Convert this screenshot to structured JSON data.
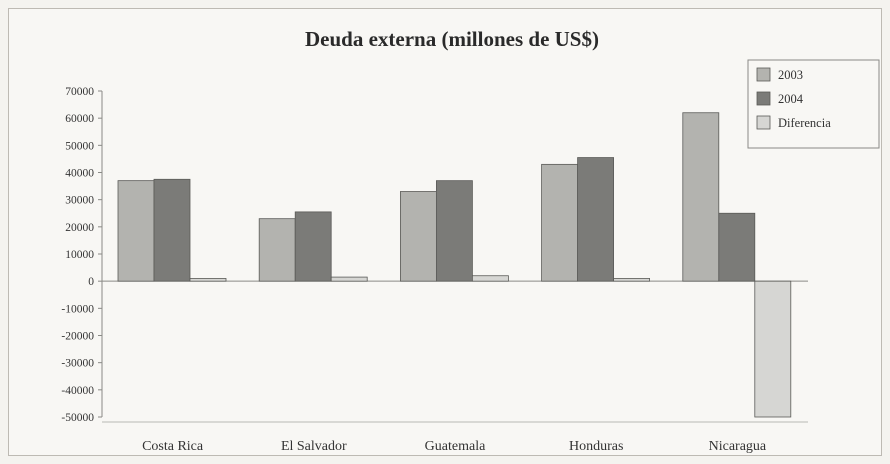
{
  "chart_data": {
    "type": "bar",
    "title": "Deuda externa (millones de US$)",
    "xlabel": "",
    "ylabel": "",
    "categories": [
      "Costa Rica",
      "El Salvador",
      "Guatemala",
      "Honduras",
      "Nicaragua"
    ],
    "series": [
      {
        "name": "2003",
        "values": [
          37000,
          23000,
          33000,
          43000,
          62000
        ],
        "color": "#b3b3af"
      },
      {
        "name": "2004",
        "values": [
          37500,
          25500,
          37000,
          45500,
          25000
        ],
        "color": "#7b7b78"
      },
      {
        "name": "Diferencia",
        "values": [
          1000,
          1500,
          2000,
          1000,
          -50000
        ],
        "color": "#d6d6d3"
      }
    ],
    "ylim": [
      -50000,
      70000
    ],
    "yticks": [
      70000,
      60000,
      50000,
      40000,
      30000,
      20000,
      10000,
      0,
      -10000,
      -20000,
      -30000,
      -40000,
      -50000
    ],
    "grid": false,
    "legend_position": "top-right"
  }
}
